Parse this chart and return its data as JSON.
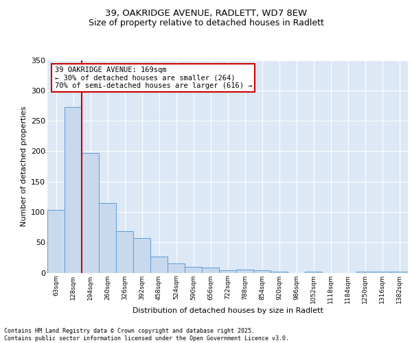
{
  "title_line1": "39, OAKRIDGE AVENUE, RADLETT, WD7 8EW",
  "title_line2": "Size of property relative to detached houses in Radlett",
  "xlabel": "Distribution of detached houses by size in Radlett",
  "ylabel": "Number of detached properties",
  "categories": [
    "63sqm",
    "128sqm",
    "194sqm",
    "260sqm",
    "326sqm",
    "392sqm",
    "458sqm",
    "524sqm",
    "590sqm",
    "656sqm",
    "722sqm",
    "788sqm",
    "854sqm",
    "920sqm",
    "986sqm",
    "1052sqm",
    "1118sqm",
    "1184sqm",
    "1250sqm",
    "1316sqm",
    "1382sqm"
  ],
  "values": [
    103,
    273,
    197,
    115,
    68,
    57,
    26,
    15,
    10,
    8,
    4,
    5,
    4,
    2,
    0,
    2,
    0,
    0,
    2,
    2,
    2
  ],
  "bar_color": "#c8d9ee",
  "bar_edge_color": "#5b9bd5",
  "ylim": [
    0,
    350
  ],
  "yticks": [
    0,
    50,
    100,
    150,
    200,
    250,
    300,
    350
  ],
  "property_line_x": 1.5,
  "annotation_text": "39 OAKRIDGE AVENUE: 169sqm\n← 30% of detached houses are smaller (264)\n70% of semi-detached houses are larger (616) →",
  "annotation_box_color": "#ffffff",
  "annotation_box_edge": "#cc0000",
  "red_line_color": "#cc0000",
  "background_color": "#dce8f5",
  "grid_color": "#ffffff",
  "footer_line1": "Contains HM Land Registry data © Crown copyright and database right 2025.",
  "footer_line2": "Contains public sector information licensed under the Open Government Licence v3.0."
}
